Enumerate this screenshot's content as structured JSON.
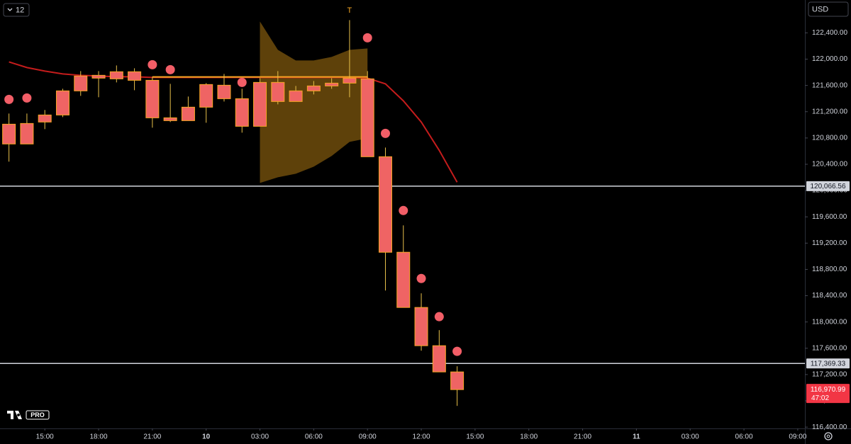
{
  "chart_data": {
    "type": "candlestick",
    "interval": "12",
    "currency": "USD",
    "logo_text": "PRO",
    "x": [
      -11,
      -10,
      -9,
      -8,
      -7,
      -6,
      -5,
      -4,
      -3,
      -2,
      -1,
      0,
      1,
      2,
      3,
      4,
      5,
      6,
      7,
      8,
      9,
      10,
      11,
      12,
      13,
      14
    ],
    "open": [
      121010,
      120709,
      121043,
      121150,
      121517,
      121711,
      121700,
      121808,
      121678,
      121107,
      121064,
      121269,
      121603,
      121398,
      120978,
      121646,
      121355,
      121517,
      121592,
      121635,
      121700,
      120515,
      119061,
      118221,
      117639,
      117240
    ],
    "high": [
      121172,
      121172,
      121226,
      121549,
      121818,
      121818,
      121904,
      121861,
      121732,
      121624,
      121431,
      121635,
      121775,
      121549,
      121711,
      121818,
      121592,
      121667,
      121711,
      122594,
      121818,
      120655,
      119470,
      118436,
      117876,
      117326
    ],
    "low": [
      120440,
      120709,
      120935,
      121118,
      121441,
      121420,
      121646,
      121527,
      120957,
      121043,
      121064,
      121032,
      121355,
      120881,
      120978,
      121312,
      121355,
      121463,
      121549,
      121420,
      120515,
      118479,
      118221,
      117563,
      117240,
      116723
    ],
    "close": [
      120709,
      121021,
      121150,
      121517,
      121743,
      121754,
      121808,
      121678,
      121107,
      121064,
      121269,
      121614,
      121398,
      120978,
      121646,
      121355,
      121517,
      121592,
      121635,
      121711,
      120515,
      119061,
      118221,
      117639,
      117240,
      116970.99
    ],
    "moving_average": {
      "color": "#c41c1c",
      "values": [
        121958,
        121872,
        121818,
        121775,
        121754,
        121743,
        121732,
        121732,
        121721,
        121721,
        121721,
        121721,
        121721,
        121721,
        121721,
        121721,
        121721,
        121721,
        121721,
        121721,
        121711,
        121624,
        121366,
        121043,
        120612,
        120127
      ]
    },
    "level_line": {
      "color": "#f5a623",
      "value": 121730,
      "x": [
        -3,
        9
      ]
    },
    "range_band": {
      "color": "#6e4c0c",
      "x": [
        3,
        4,
        5,
        6,
        7,
        8,
        9
      ],
      "upper": [
        122572,
        122141,
        121980,
        121980,
        122034,
        122141,
        122163
      ],
      "lower": [
        120116,
        120202,
        120256,
        120364,
        120526,
        120741,
        120795
      ]
    },
    "signals": {
      "color": "#f25e67",
      "x": [
        -11,
        -10,
        -3,
        -2,
        2,
        9,
        10,
        11,
        12,
        13,
        14
      ],
      "values": [
        121387,
        121409,
        121915,
        121840,
        121646,
        122325,
        120870,
        119696,
        118662,
        118081,
        117553
      ]
    },
    "annotations": [
      {
        "text": "T",
        "x": 8
      }
    ],
    "hlines": [
      {
        "value": 120066.56,
        "label": "120,066.56"
      },
      {
        "value": 117369.33,
        "label": "117,369.33"
      }
    ],
    "last_price": {
      "value": 116970.99,
      "label": "116,970.99",
      "countdown": "47:02"
    },
    "xlim": [
      -11.5,
      33.4
    ],
    "ylim": [
      116380,
      122900
    ],
    "xticks": [
      {
        "value": -9,
        "label": "15:00"
      },
      {
        "value": -6,
        "label": "18:00"
      },
      {
        "value": -3,
        "label": "21:00"
      },
      {
        "value": 0,
        "label": "10"
      },
      {
        "value": 3,
        "label": "03:00"
      },
      {
        "value": 6,
        "label": "06:00"
      },
      {
        "value": 9,
        "label": "09:00"
      },
      {
        "value": 12,
        "label": "12:00"
      },
      {
        "value": 15,
        "label": "15:00"
      },
      {
        "value": 18,
        "label": "18:00"
      },
      {
        "value": 21,
        "label": "21:00"
      },
      {
        "value": 24,
        "label": "11"
      },
      {
        "value": 27,
        "label": "03:00"
      },
      {
        "value": 30,
        "label": "06:00"
      },
      {
        "value": 33,
        "label": "09:00"
      }
    ],
    "yticks": [
      {
        "value": 116400,
        "label": "116,400.00"
      },
      {
        "value": 116800,
        "label": "116,800.00"
      },
      {
        "value": 117200,
        "label": "117,200.00"
      },
      {
        "value": 117600,
        "label": "117,600.00"
      },
      {
        "value": 118000,
        "label": "118,000.00"
      },
      {
        "value": 118400,
        "label": "118,400.00"
      },
      {
        "value": 118800,
        "label": "118,800.00"
      },
      {
        "value": 119200,
        "label": "119,200.00"
      },
      {
        "value": 119600,
        "label": "119,600.00"
      },
      {
        "value": 120000,
        "label": "120,000.00"
      },
      {
        "value": 120400,
        "label": "120,400.00"
      },
      {
        "value": 120800,
        "label": "120,800.00"
      },
      {
        "value": 121200,
        "label": "121,200.00"
      },
      {
        "value": 121600,
        "label": "121,600.00"
      },
      {
        "value": 122000,
        "label": "122,000.00"
      },
      {
        "value": 122400,
        "label": "122,400.00"
      }
    ],
    "candle_fill": "#ef6464",
    "candle_border": "#f5a623",
    "wick_color": "#e8c04a"
  }
}
